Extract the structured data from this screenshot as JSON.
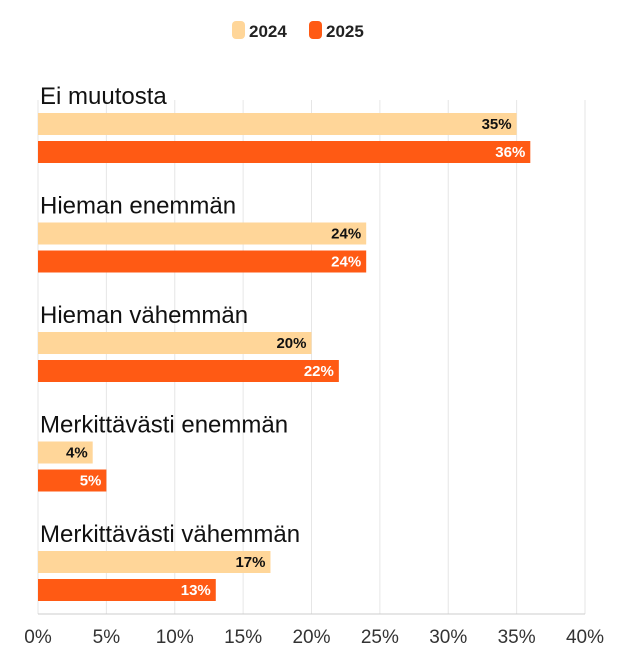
{
  "chart_data": {
    "type": "bar",
    "orientation": "horizontal",
    "categories": [
      "Ei muutosta",
      "Hieman enemmän",
      "Hieman vähemmän",
      "Merkittävästi enemmän",
      "Merkittävästi vähemmän"
    ],
    "series": [
      {
        "name": "2024",
        "values": [
          35,
          24,
          20,
          4,
          17
        ],
        "labels": [
          "35%",
          "24%",
          "20%",
          "4%",
          "17%"
        ],
        "color": "#FFD699",
        "label_color": "#111111"
      },
      {
        "name": "2025",
        "values": [
          36,
          24,
          22,
          5,
          13
        ],
        "labels": [
          "36%",
          "24%",
          "22%",
          "5%",
          "13%"
        ],
        "color": "#FF5A14",
        "label_color": "#ffffff"
      }
    ],
    "xlim": [
      0,
      40
    ],
    "xticks": [
      0,
      5,
      10,
      15,
      20,
      25,
      30,
      35,
      40
    ],
    "xtick_labels": [
      "0%",
      "5%",
      "10%",
      "15%",
      "20%",
      "25%",
      "30%",
      "35%",
      "40%"
    ],
    "grid": true,
    "legend_position": "top-center",
    "title": "",
    "xlabel": "",
    "ylabel": ""
  }
}
